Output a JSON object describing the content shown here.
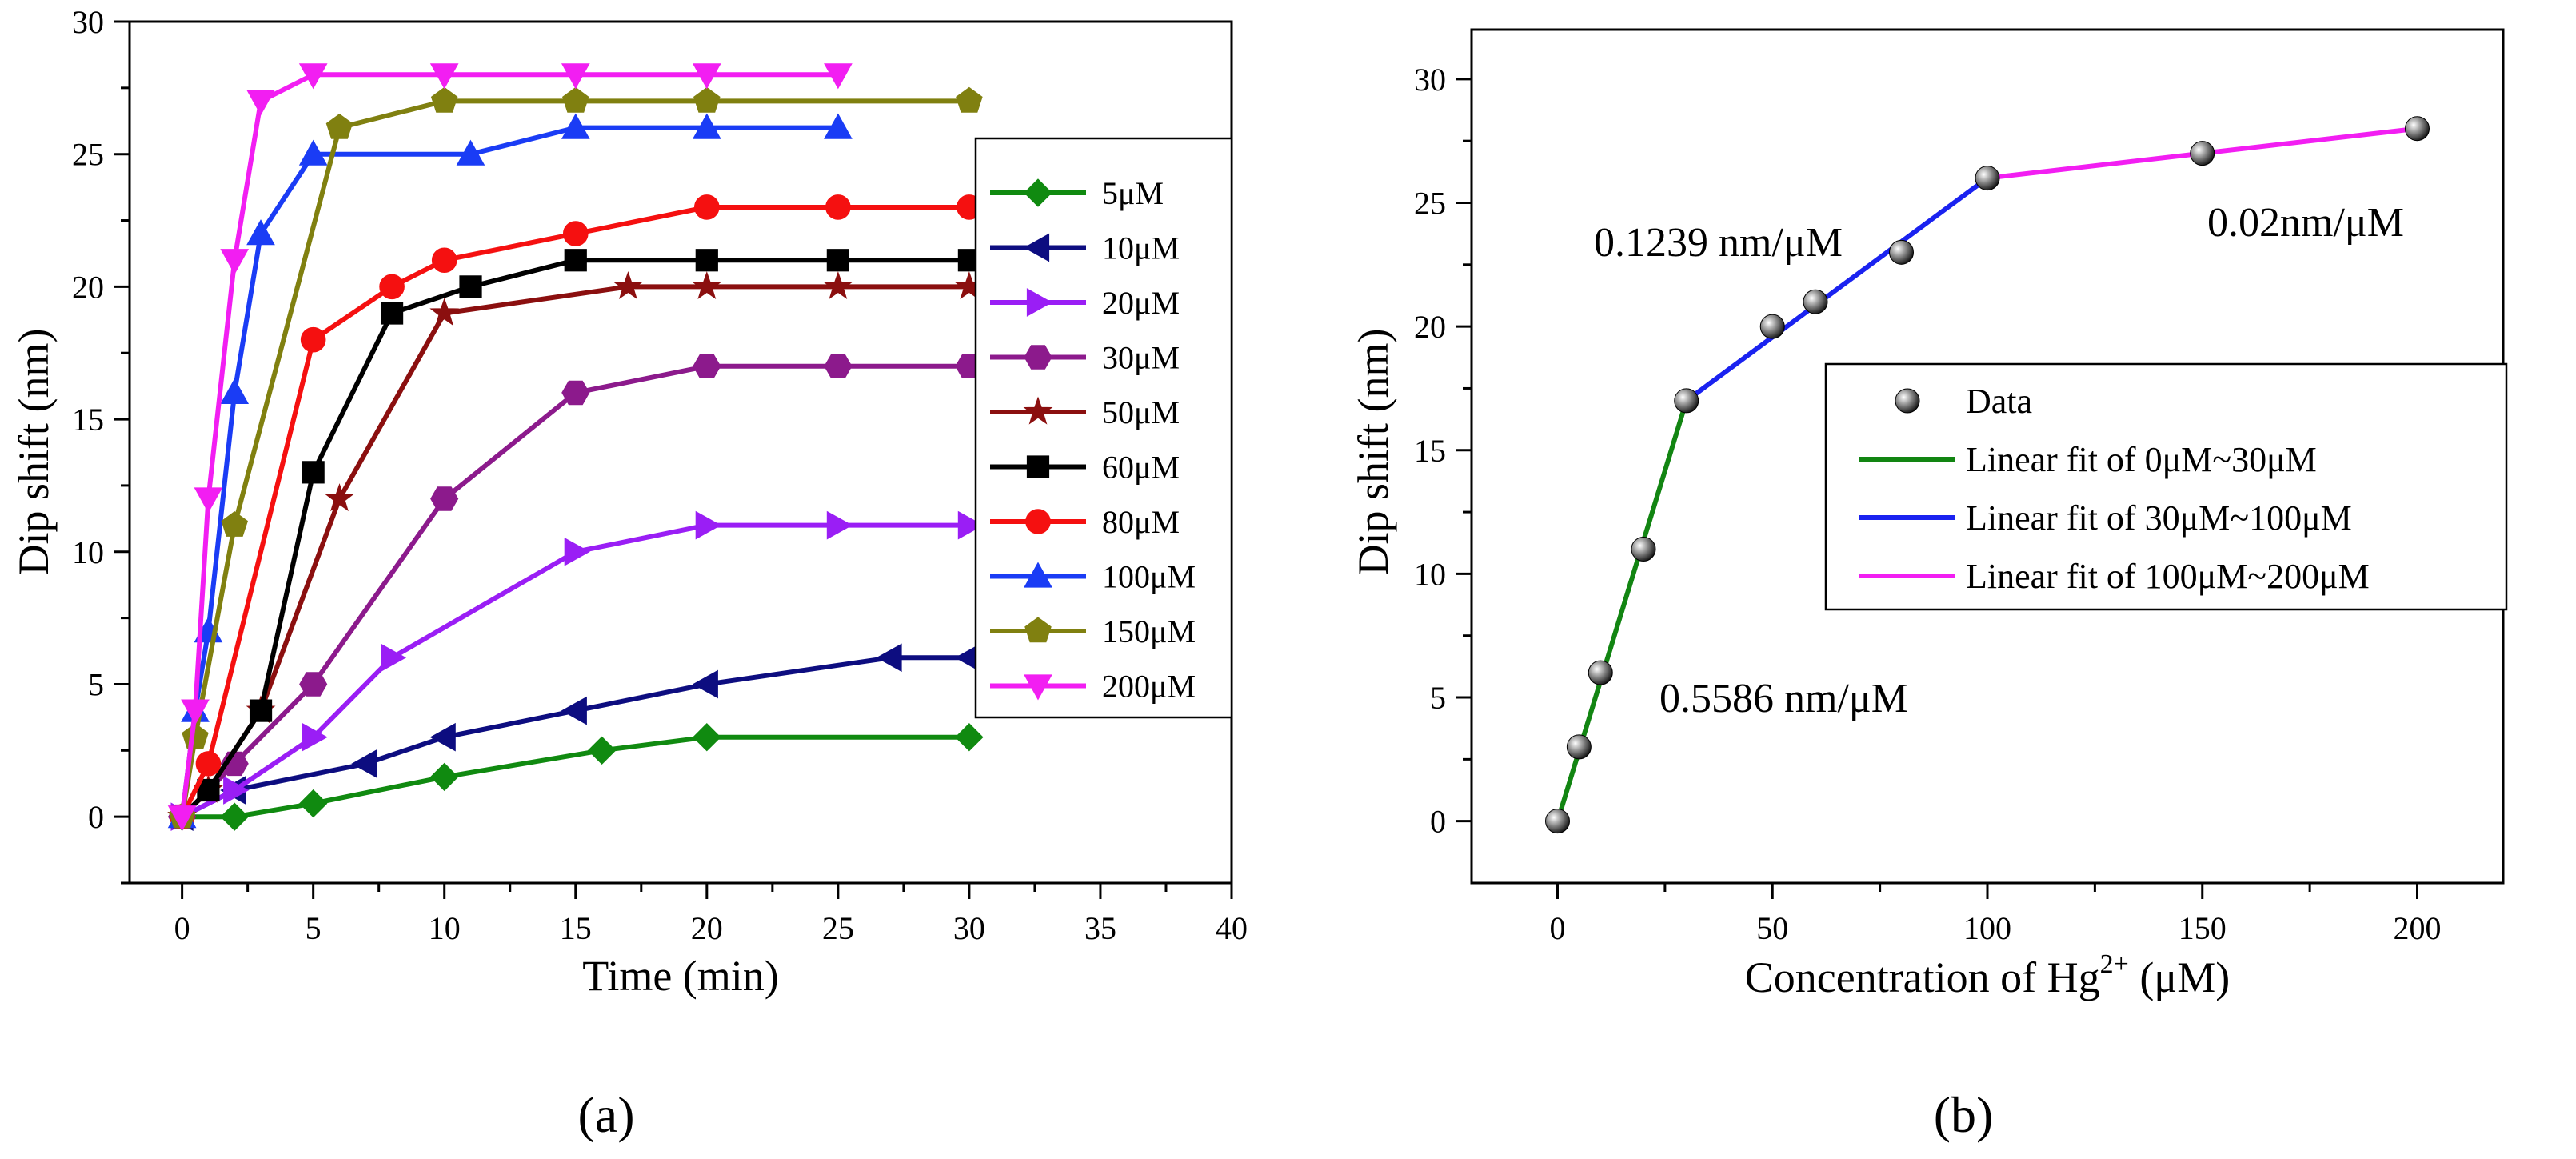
{
  "chart_data": [
    {
      "type": "line",
      "panel_label": "(a)",
      "xlabel": "Time (min)",
      "ylabel": "Dip shift (nm)",
      "xlim": [
        -2,
        40
      ],
      "ylim": [
        -2.5,
        30
      ],
      "xticks": [
        "0",
        "5",
        "10",
        "15",
        "20",
        "25",
        "30",
        "35",
        "40"
      ],
      "yticks": [
        "0",
        "5",
        "10",
        "15",
        "20",
        "25",
        "30"
      ],
      "legend_position": "right",
      "series": [
        {
          "name": "5μM",
          "color": "#108a10",
          "marker": "diamond",
          "x": [
            0,
            2,
            5,
            10,
            16,
            20,
            30
          ],
          "y": [
            0,
            0,
            0.5,
            1.5,
            2.5,
            3,
            3
          ]
        },
        {
          "name": "10μM",
          "color": "#0d0d80",
          "marker": "triangle-left",
          "x": [
            0,
            2,
            7,
            10,
            15,
            20,
            27,
            30
          ],
          "y": [
            0,
            1,
            2,
            3,
            4,
            5,
            6,
            6
          ]
        },
        {
          "name": "20μM",
          "color": "#9a1ef5",
          "marker": "triangle-right",
          "x": [
            0,
            2,
            5,
            8,
            15,
            20,
            25,
            30
          ],
          "y": [
            0,
            1,
            3,
            6,
            10,
            11,
            11,
            11
          ]
        },
        {
          "name": "30μM",
          "color": "#8c1a8c",
          "marker": "hexagon",
          "x": [
            0,
            2,
            5,
            10,
            15,
            20,
            25,
            30
          ],
          "y": [
            0,
            2,
            5,
            12,
            16,
            17,
            17,
            17
          ]
        },
        {
          "name": "50μM",
          "color": "#8b0f0f",
          "marker": "star",
          "x": [
            0,
            1,
            3,
            6,
            10,
            17,
            20,
            25,
            30
          ],
          "y": [
            0,
            1,
            4,
            12,
            19,
            20,
            20,
            20,
            20
          ]
        },
        {
          "name": "60μM",
          "color": "#000000",
          "marker": "square",
          "x": [
            0,
            1,
            3,
            5,
            8,
            11,
            15,
            20,
            25,
            30
          ],
          "y": [
            0,
            1,
            4,
            13,
            19,
            20,
            21,
            21,
            21,
            21
          ]
        },
        {
          "name": "80μM",
          "color": "#f51010",
          "marker": "circle",
          "x": [
            0,
            1,
            5,
            8,
            10,
            15,
            20,
            25,
            30
          ],
          "y": [
            0,
            2,
            18,
            20,
            21,
            22,
            23,
            23,
            23
          ]
        },
        {
          "name": "100μM",
          "color": "#1a3cf5",
          "marker": "triangle-up",
          "x": [
            0,
            0.5,
            1,
            2,
            3,
            5,
            11,
            15,
            20,
            25
          ],
          "y": [
            0,
            4,
            7,
            16,
            22,
            25,
            25,
            26,
            26,
            26
          ]
        },
        {
          "name": "150μM",
          "color": "#808010",
          "marker": "pentagon",
          "x": [
            0,
            0.5,
            2,
            6,
            10,
            15,
            20,
            30
          ],
          "y": [
            0,
            3,
            11,
            26,
            27,
            27,
            27,
            27
          ]
        },
        {
          "name": "200μM",
          "color": "#f21ef2",
          "marker": "triangle-down",
          "x": [
            0,
            0.5,
            1,
            2,
            3,
            5,
            10,
            15,
            20,
            25
          ],
          "y": [
            0,
            4,
            12,
            21,
            27,
            28,
            28,
            28,
            28,
            28
          ]
        }
      ]
    },
    {
      "type": "scatter",
      "panel_label": "(b)",
      "xlabel_main": "Concentration of Hg",
      "xlabel_sup": "2+",
      "xlabel_unit": " (μM)",
      "ylabel": "Dip shift (nm)",
      "xlim": [
        -20,
        220
      ],
      "ylim": [
        -2.5,
        32
      ],
      "xticks": [
        "0",
        "50",
        "100",
        "150",
        "200"
      ],
      "yticks": [
        "0",
        "5",
        "10",
        "15",
        "20",
        "25",
        "30"
      ],
      "legend_position": "center-right",
      "points": {
        "name": "Data",
        "x": [
          0,
          5,
          10,
          20,
          30,
          50,
          60,
          80,
          100,
          150,
          200
        ],
        "y": [
          0,
          3,
          6,
          11,
          17,
          20,
          21,
          23,
          26,
          27,
          28
        ]
      },
      "fits": [
        {
          "name": "Linear fit of 0μM~30μM",
          "color": "#128512",
          "x": [
            0,
            30
          ],
          "y": [
            0,
            17
          ]
        },
        {
          "name": "Linear fit of 30μM~100μM",
          "color": "#1a22f0",
          "x": [
            30,
            100
          ],
          "y": [
            17,
            26
          ]
        },
        {
          "name": "Linear fit of 100μM~200μM",
          "color": "#f21ef2",
          "x": [
            100,
            200
          ],
          "y": [
            26,
            28
          ]
        }
      ],
      "annotations": [
        "0.1239 nm/μM",
        "0.02nm/μM",
        "0.5586 nm/μM"
      ]
    }
  ]
}
